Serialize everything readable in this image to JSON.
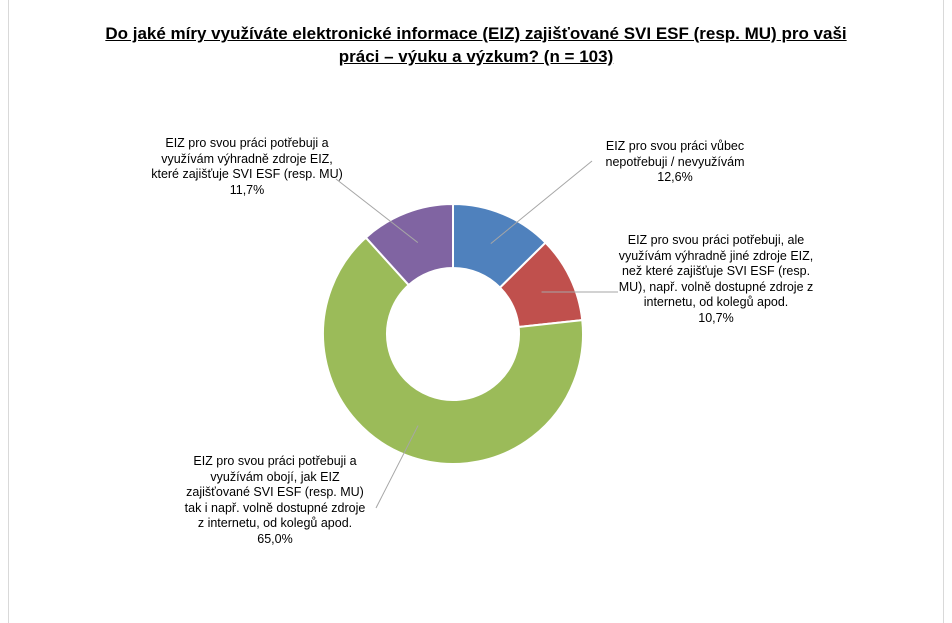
{
  "chart_data": {
    "type": "pie",
    "title_line1": "Do jaké míry využíváte elektronické informace (EIZ) zajišťované SVI ESF (resp. MU) pro vaši",
    "title_line2": "práci – výuku a výzkum? (n = 103)",
    "slices": [
      {
        "label": "EIZ pro svou práci vůbec nepotřebuji / nevyužívám",
        "value": 12.6,
        "value_label": "12,6%",
        "color": "#4f81bd"
      },
      {
        "label": "EIZ pro svou práci potřebuji, ale využívám výhradně jiné zdroje EIZ, než které zajišťuje SVI ESF (resp. MU), např. volně dostupné zdroje z internetu, od kolegů apod.",
        "value": 10.7,
        "value_label": "10,7%",
        "color": "#c0504d"
      },
      {
        "label": "EIZ pro svou práci potřebuji a využívám obojí, jak EIZ zajišťované SVI ESF (resp. MU) tak i např. volně dostupné zdroje z internetu, od kolegů apod.",
        "value": 65.0,
        "value_label": "65,0%",
        "color": "#9bbb59"
      },
      {
        "label": "EIZ pro svou práci potřebuji a využívám výhradně zdroje EIZ, které zajišťuje SVI ESF (resp. MU)",
        "value": 11.7,
        "value_label": "11,7%",
        "color": "#8064a2"
      }
    ],
    "donut": true,
    "legend": "none"
  }
}
